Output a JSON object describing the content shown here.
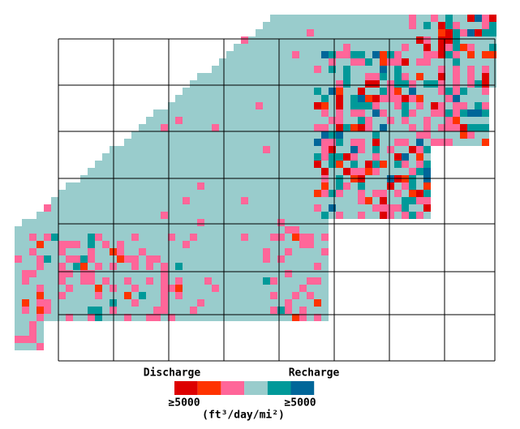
{
  "legend": {
    "left_label": "Discharge",
    "right_label": "Recharge",
    "colors": [
      "#dd0000",
      "#ff3300",
      "#ff6699",
      "#99cccc",
      "#009999",
      "#006699"
    ],
    "left_value": "≥5000",
    "right_value": "≥5000",
    "units": "(ft³/day/mi²)"
  }
}
